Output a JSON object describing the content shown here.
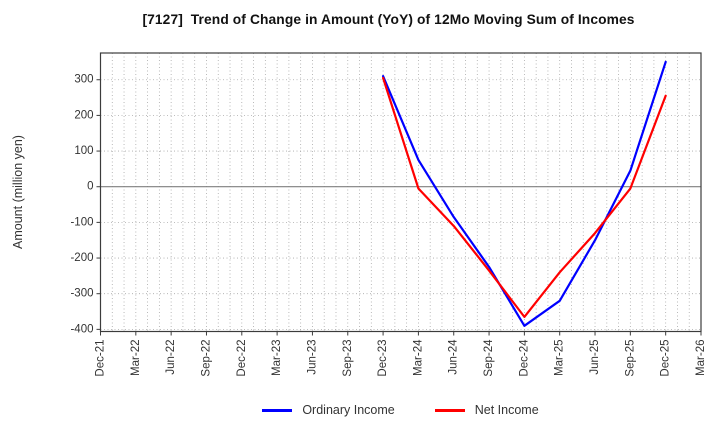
{
  "chart_data": {
    "type": "line",
    "title": "[7127]  Trend of Change in Amount (YoY) of 12Mo Moving Sum of Incomes",
    "ylabel": "Amount (million yen)",
    "xlabel": "",
    "categories": [
      "Dec-21",
      "Mar-22",
      "Jun-22",
      "Sep-22",
      "Dec-22",
      "Mar-23",
      "Jun-23",
      "Sep-23",
      "Dec-23",
      "Mar-24",
      "Jun-24",
      "Sep-24",
      "Dec-24",
      "Mar-25",
      "Jun-25",
      "Sep-25",
      "Dec-25",
      "Mar-26"
    ],
    "series": [
      {
        "name": "Ordinary Income",
        "color": "#0000ff",
        "values": [
          null,
          null,
          null,
          null,
          null,
          null,
          null,
          null,
          310,
          75,
          -85,
          -225,
          -390,
          -320,
          -150,
          45,
          350,
          null
        ]
      },
      {
        "name": "Net Income",
        "color": "#ff0000",
        "values": [
          null,
          null,
          null,
          null,
          null,
          null,
          null,
          null,
          305,
          -5,
          -110,
          -235,
          -365,
          -240,
          -130,
          -5,
          255,
          null
        ]
      }
    ],
    "ylim": [
      -406,
      375
    ],
    "yticks": [
      300,
      200,
      100,
      0,
      -100,
      -200,
      -300,
      -400
    ],
    "grid": "dotted, monthly minor x-grid, solid zero line",
    "legend_position": "bottom"
  },
  "style": {
    "grid_color": "#a9a9a9",
    "zero_line_color": "#7f7f7f",
    "frame_color": "#3c3c3c",
    "tick_label_color": "#333333",
    "background": "#ffffff"
  }
}
